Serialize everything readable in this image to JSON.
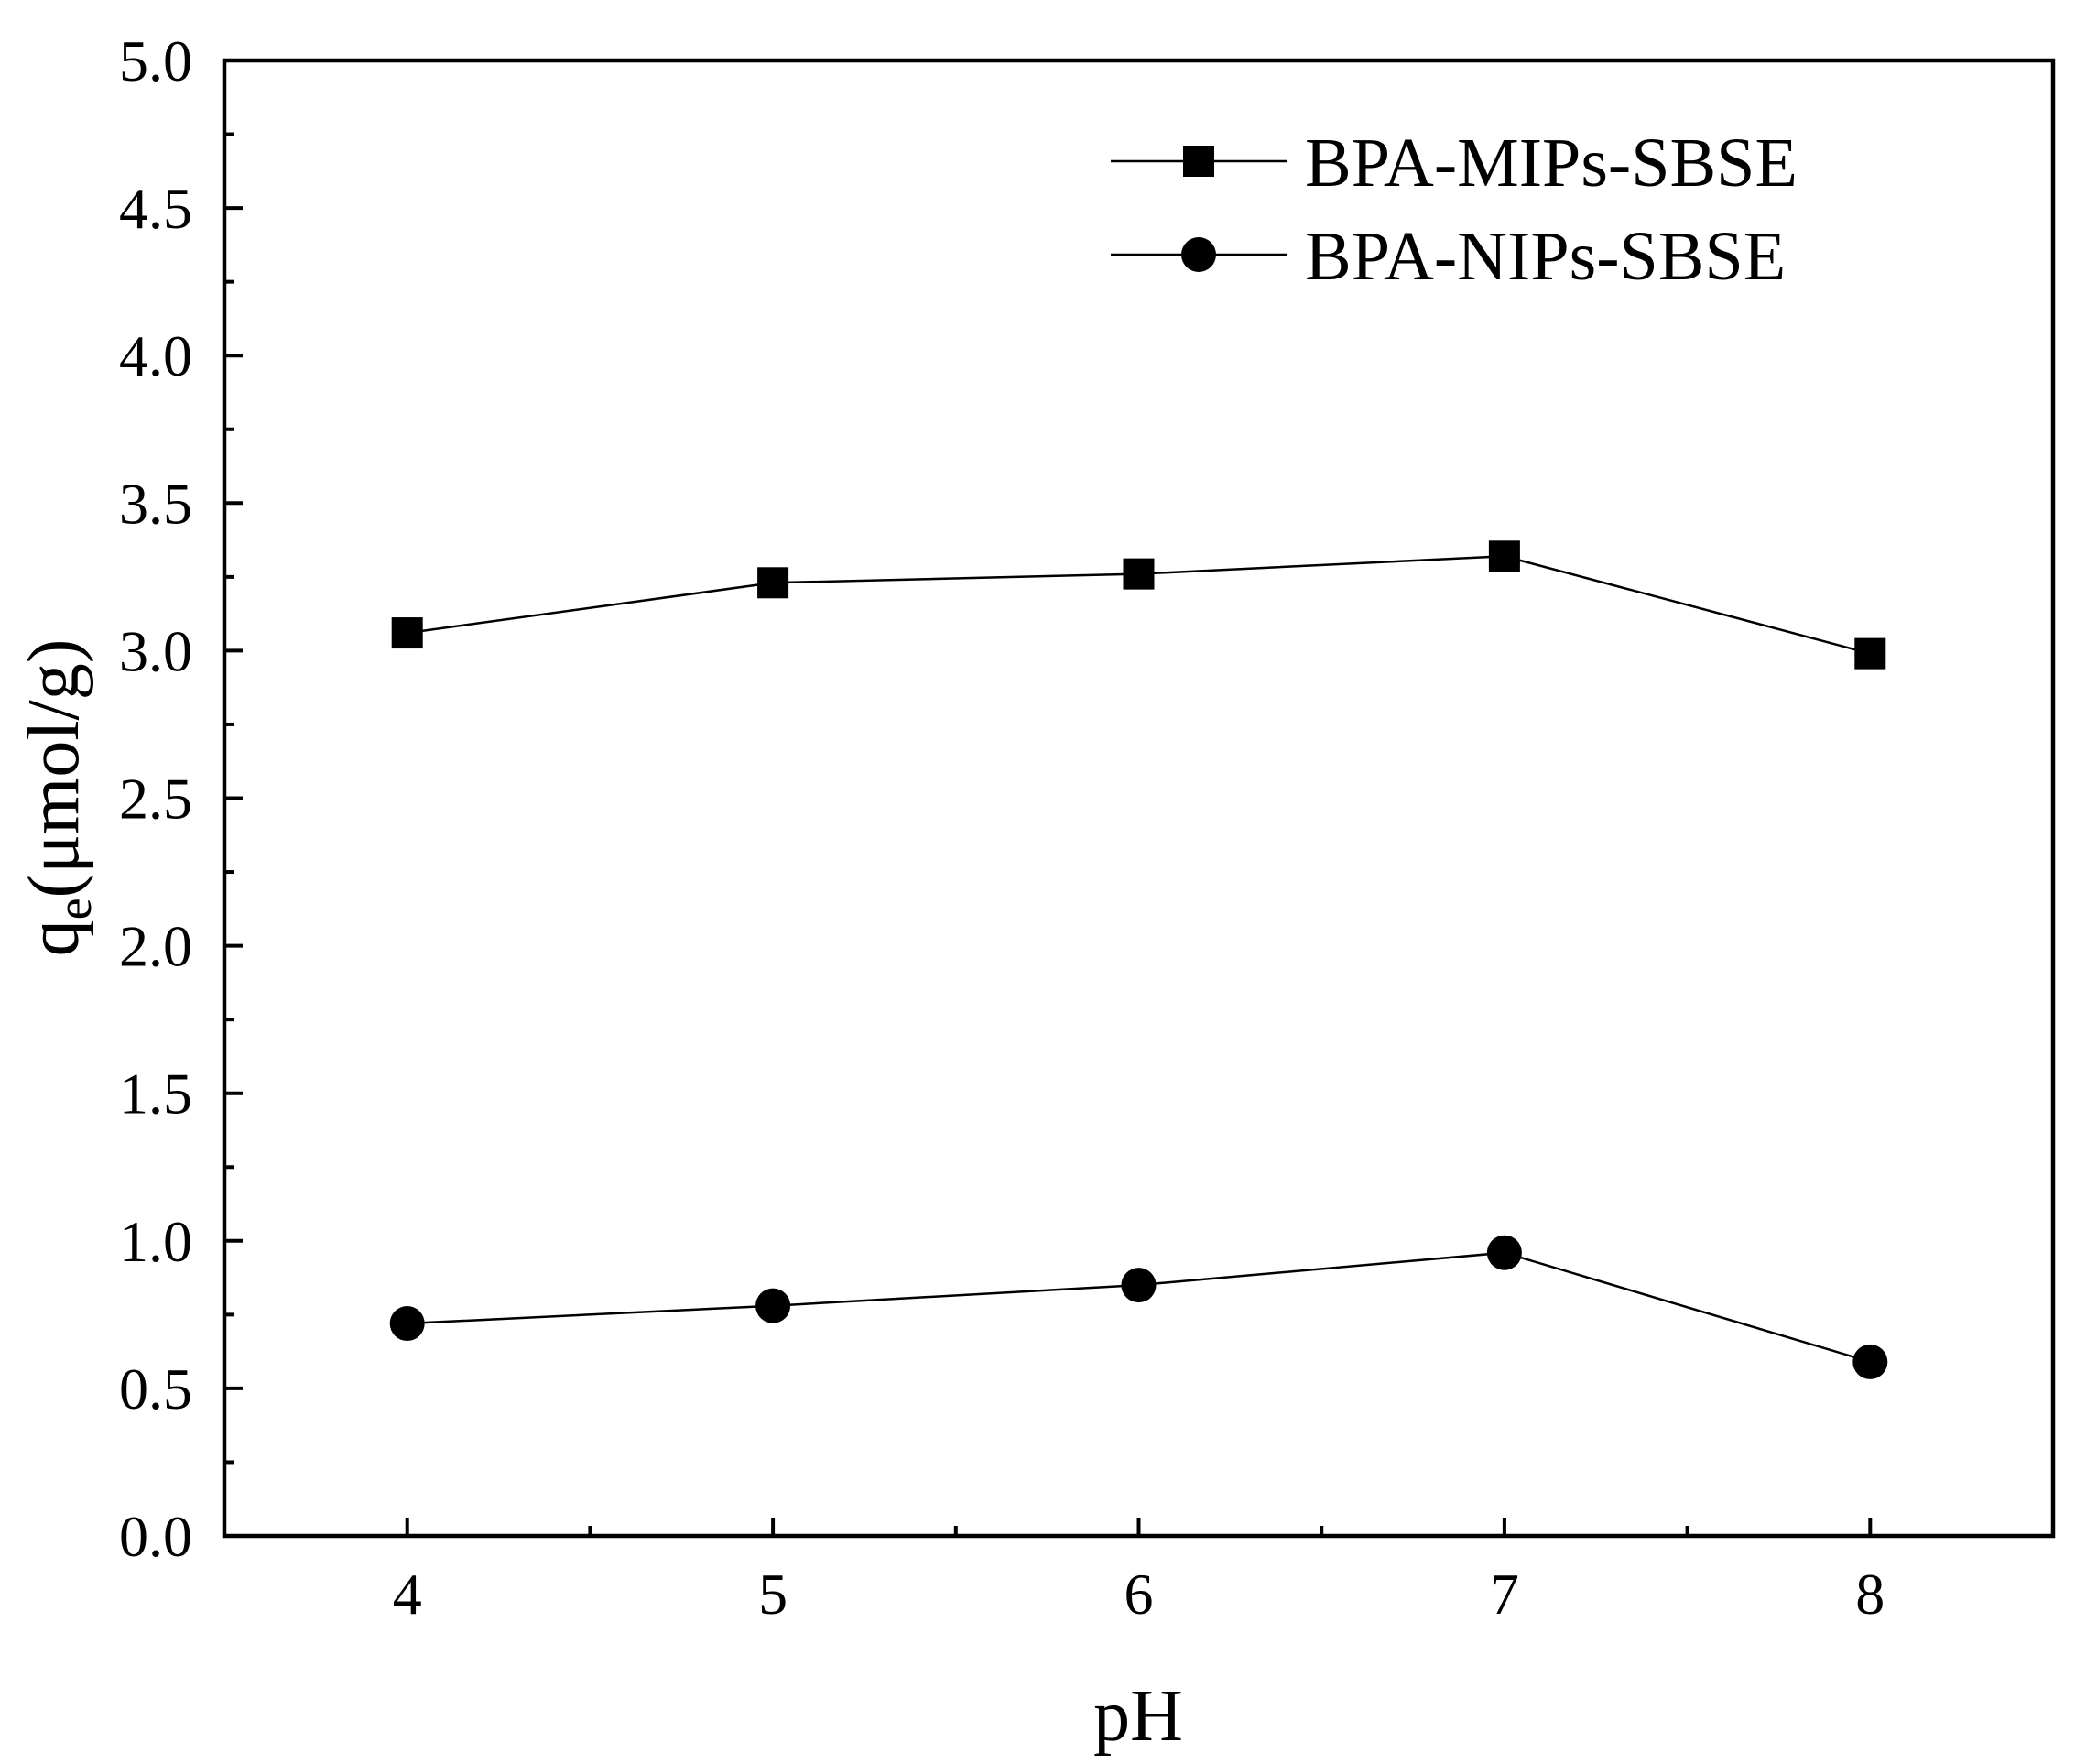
{
  "chart_data": {
    "type": "line",
    "x": [
      4,
      5,
      6,
      7,
      8
    ],
    "xlabel": "pH",
    "ylabel": "q",
    "ylabel_subscript": "e",
    "ylabel_unit": "(μmol/g)",
    "xlim": [
      3.5,
      8.5
    ],
    "ylim": [
      0.0,
      5.0
    ],
    "x_ticks": [
      "4",
      "5",
      "6",
      "7",
      "8"
    ],
    "y_ticks": [
      "0.0",
      "0.5",
      "1.0",
      "1.5",
      "2.0",
      "2.5",
      "3.0",
      "3.5",
      "4.0",
      "4.5",
      "5.0"
    ],
    "grid": false,
    "legend_position": "top-right",
    "series": [
      {
        "name": "BPA-MIPs-SBSE",
        "marker": "square",
        "color": "#000000",
        "values": [
          3.06,
          3.23,
          3.26,
          3.32,
          2.99
        ]
      },
      {
        "name": "BPA-NIPs-SBSE",
        "marker": "circle",
        "color": "#000000",
        "values": [
          0.72,
          0.78,
          0.85,
          0.96,
          0.59
        ]
      }
    ]
  }
}
